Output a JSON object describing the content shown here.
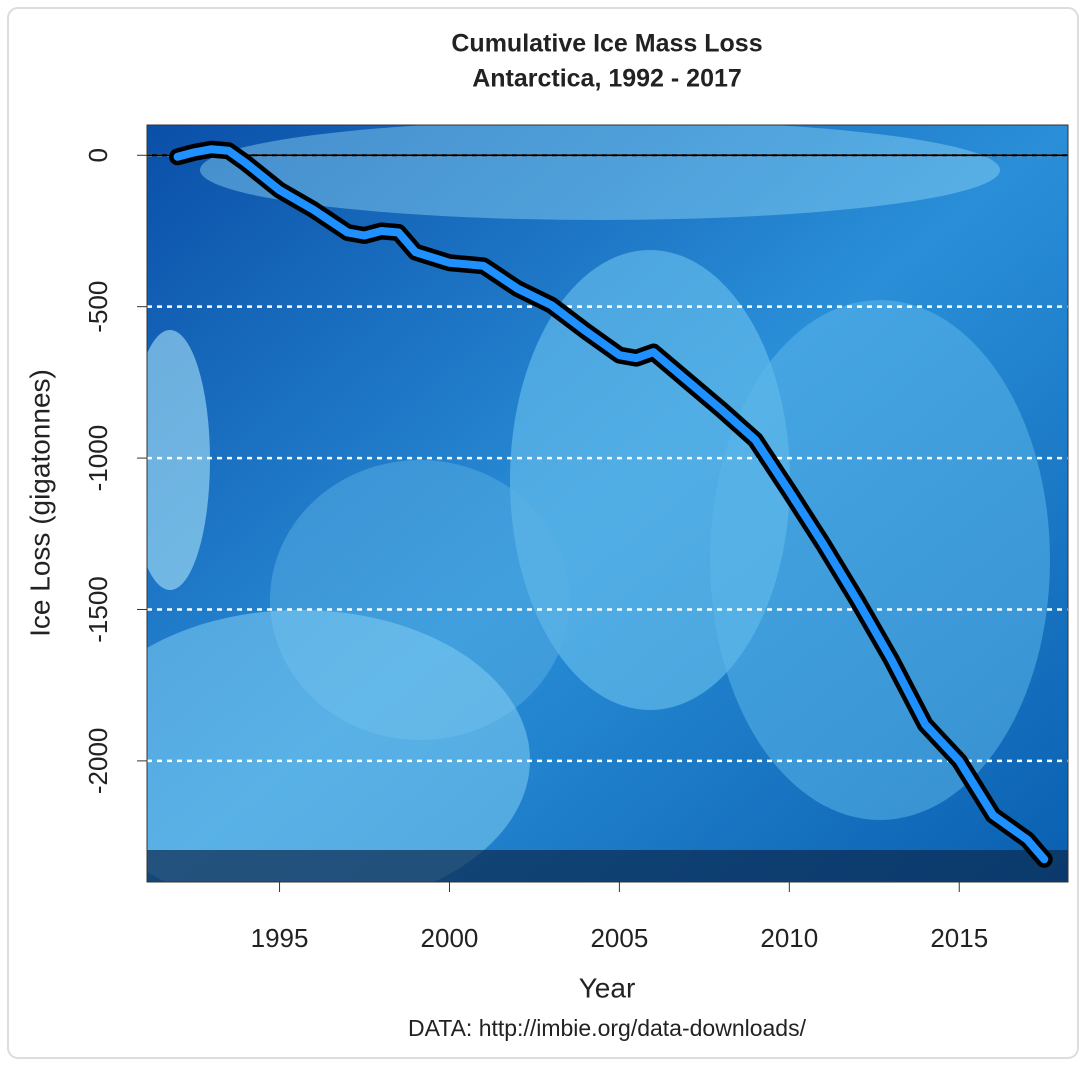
{
  "chart_data": {
    "type": "line",
    "title": "Cumulative Ice Mass Loss",
    "subtitle": "Antarctica, 1992 - 2017",
    "x_label": "Year",
    "y_label": "Ice Loss (gigatonnes)",
    "source": "DATA: http://imbie.org/data-downloads/",
    "x": [
      1992,
      1992.5,
      1993,
      1993.5,
      1994,
      1995,
      1996,
      1997,
      1997.5,
      1998,
      1998.5,
      1999,
      2000,
      2001,
      2002,
      2003,
      2004,
      2005,
      2005.5,
      2006,
      2007,
      2008,
      2009,
      2010,
      2011,
      2012,
      2013,
      2014,
      2015,
      2016,
      2017,
      2017.5
    ],
    "series": [
      {
        "color": "#1e90ff",
        "outline": "#000000",
        "values": [
          -5,
          10,
          20,
          15,
          -25,
          -115,
          -180,
          -255,
          -265,
          -250,
          -255,
          -320,
          -355,
          -365,
          -440,
          -495,
          -580,
          -660,
          -670,
          -650,
          -745,
          -840,
          -940,
          -1110,
          -1285,
          -1470,
          -1665,
          -1880,
          -2000,
          -2180,
          -2260,
          -2325
        ]
      }
    ],
    "xlim": [
      1991.1,
      2018.2
    ],
    "xticks": [
      1995,
      2000,
      2005,
      2010,
      2015
    ],
    "ylim": [
      -2400,
      100
    ],
    "yticks": [
      0,
      -500,
      -1000,
      -1500,
      -2000
    ],
    "reference_line": 0,
    "grid": true
  }
}
